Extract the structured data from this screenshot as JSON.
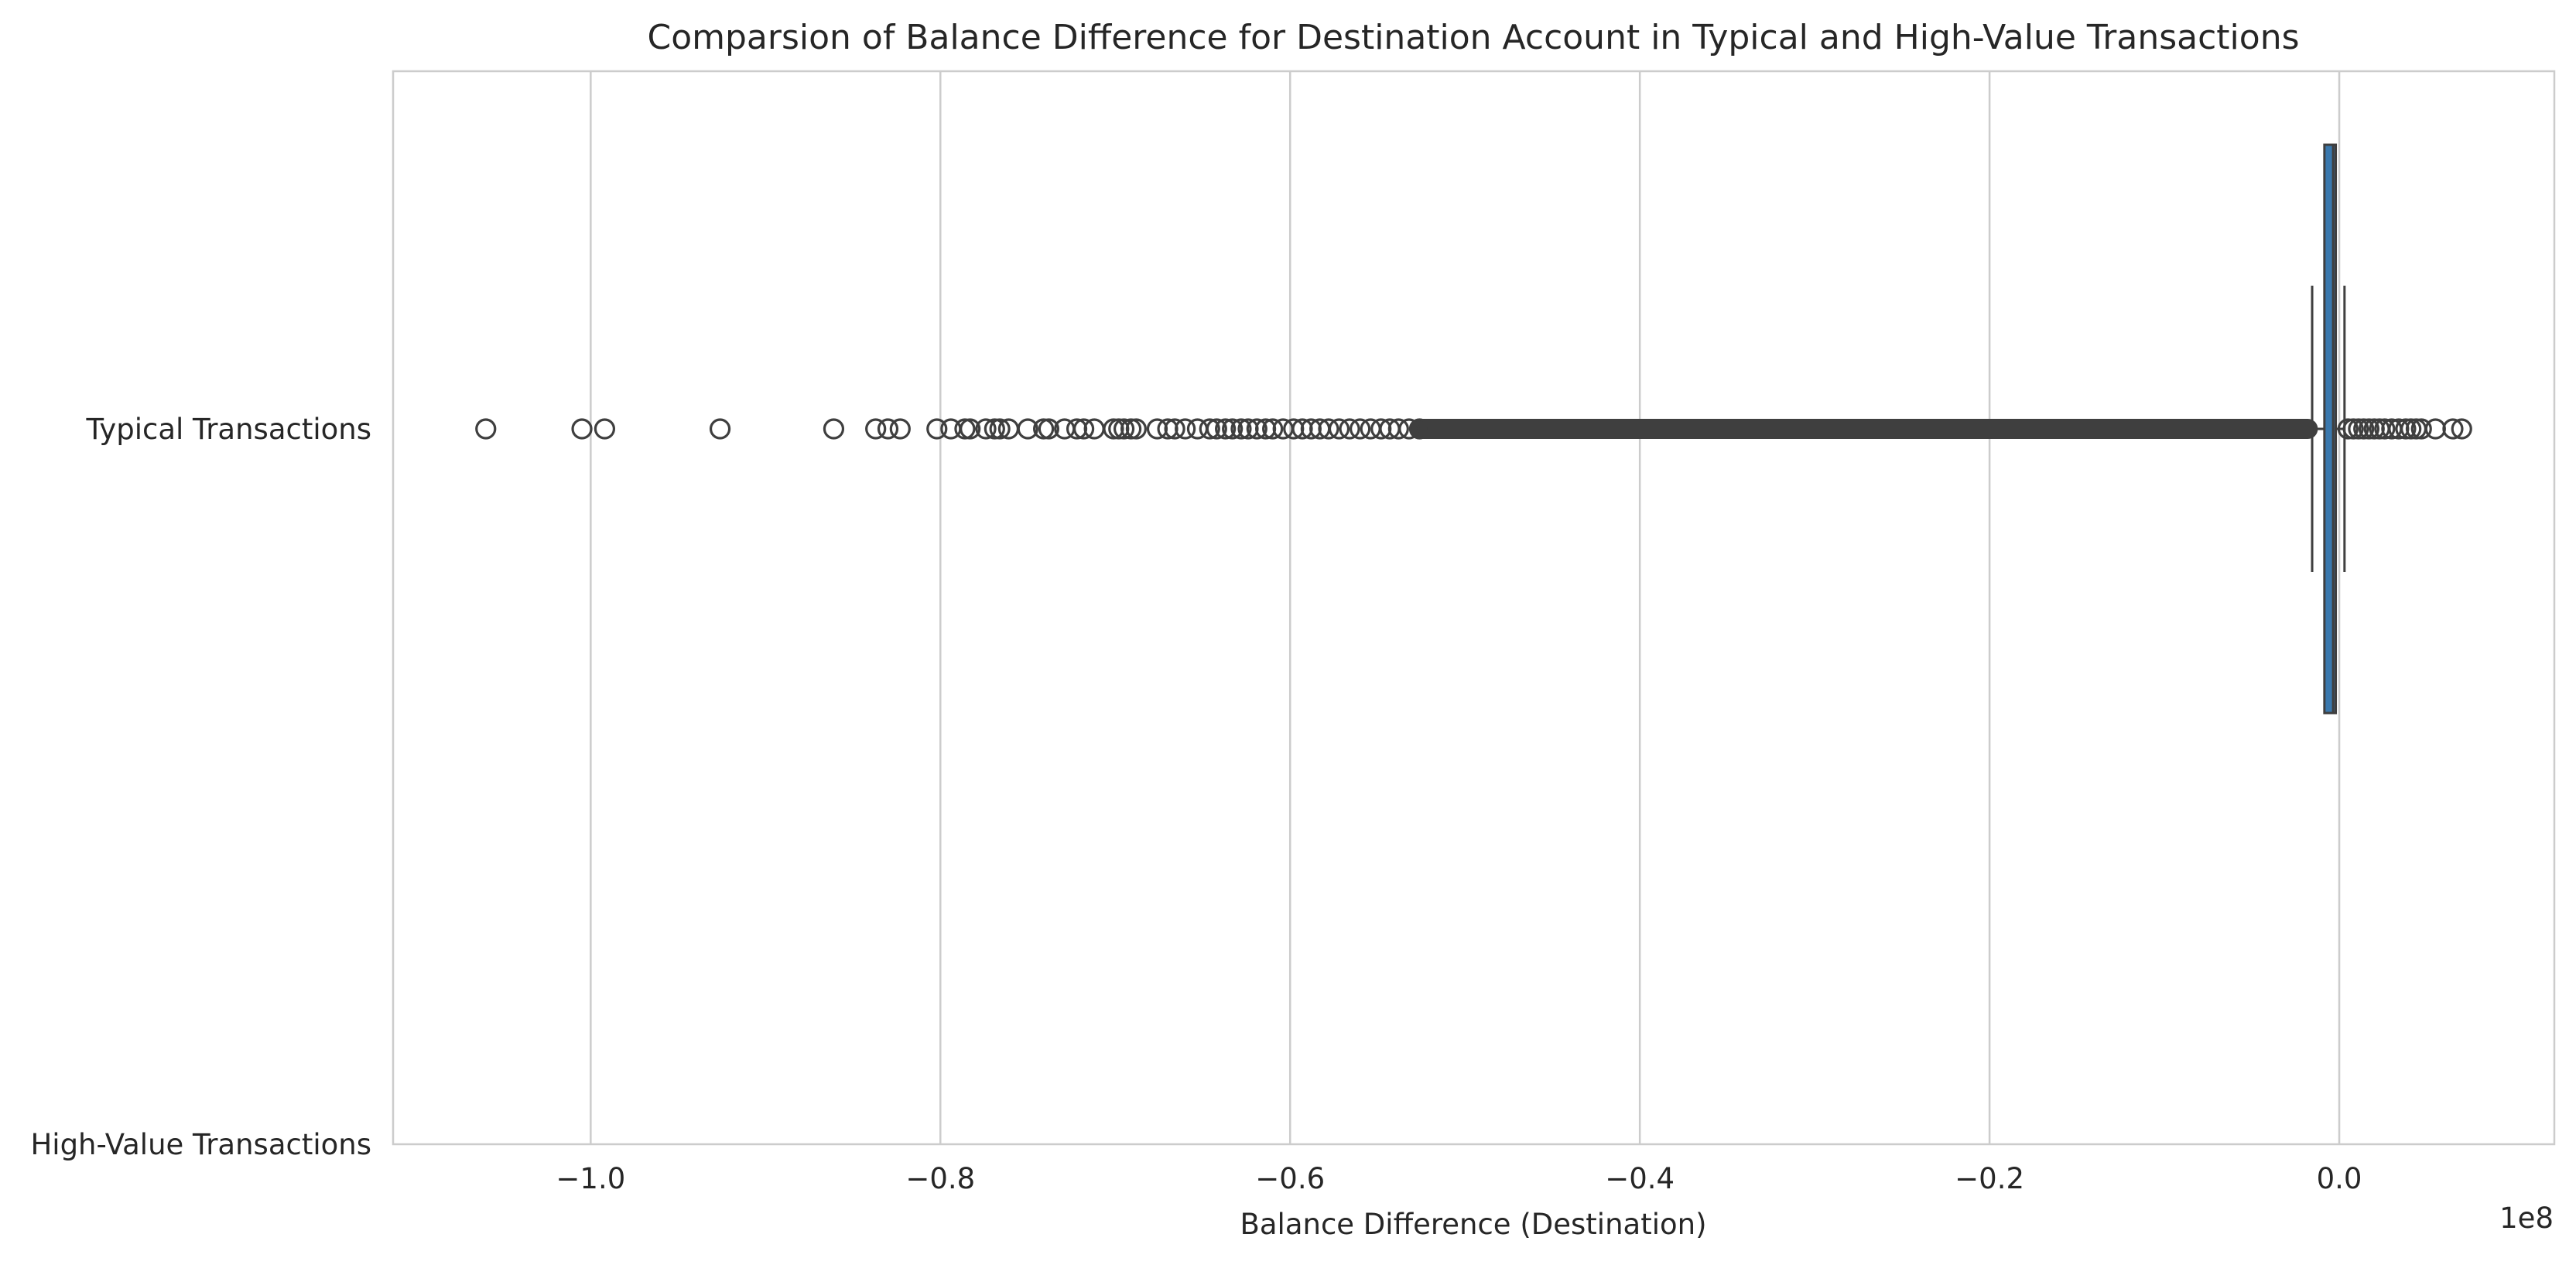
{
  "chart_data": {
    "type": "boxplot",
    "orientation": "horizontal",
    "title": "Comparsion of Balance Difference for Destination Account in Typical and High-Value Transactions",
    "xlabel": "Balance Difference (Destination)",
    "ylabel": "",
    "x_scale_label": "1e8",
    "xlim": [
      -1.113,
      0.123
    ],
    "x_ticks": [
      -1.0,
      -0.8,
      -0.6,
      -0.4,
      -0.2,
      0.0
    ],
    "x_tick_labels": [
      "−1.0",
      "−0.8",
      "−0.6",
      "−0.4",
      "−0.2",
      "0.0"
    ],
    "grid": "vertical",
    "categories": [
      "Typical Transactions",
      "High-Value Transactions"
    ],
    "box_color": "#3a78ad",
    "edge_color": "#3f3f3f",
    "grid_color": "#cccccc",
    "boxes": [
      {
        "category": "Typical Transactions",
        "whisker_low": -0.0155,
        "q1": -0.0085,
        "median": -0.0035,
        "q3": -0.002,
        "whisker_high": 0.003,
        "outliers": [
          -1.06,
          -1.005,
          -0.992,
          -0.926,
          -0.861,
          -0.837,
          -0.83,
          -0.823,
          -0.802,
          -0.794,
          -0.786,
          -0.783,
          -0.774,
          -0.769,
          -0.766,
          -0.761,
          -0.75,
          -0.741,
          -0.738,
          -0.729,
          -0.722,
          -0.718,
          -0.712,
          -0.701,
          -0.698,
          -0.695,
          -0.691,
          -0.688,
          -0.676,
          -0.67,
          -0.666,
          -0.66,
          -0.653,
          -0.646,
          -0.642,
          -0.637,
          -0.633,
          -0.628,
          -0.624,
          -0.619,
          -0.614,
          -0.61,
          -0.604,
          -0.598,
          -0.593,
          -0.588,
          -0.583,
          -0.578,
          -0.572,
          -0.566,
          -0.56,
          -0.554,
          -0.548,
          -0.543,
          -0.538,
          -0.532,
          -0.526,
          0.005,
          0.008,
          0.011,
          0.014,
          0.017,
          0.02,
          0.023,
          0.026,
          0.03,
          0.034,
          0.038,
          0.041,
          0.044,
          0.047,
          0.055,
          0.065,
          0.07
        ],
        "outlier_dense_range": [
          -0.525,
          -0.018
        ]
      },
      {
        "category": "High-Value Transactions",
        "whisker_low": null,
        "q1": null,
        "median": null,
        "q3": null,
        "whisker_high": null,
        "outliers": []
      }
    ]
  }
}
